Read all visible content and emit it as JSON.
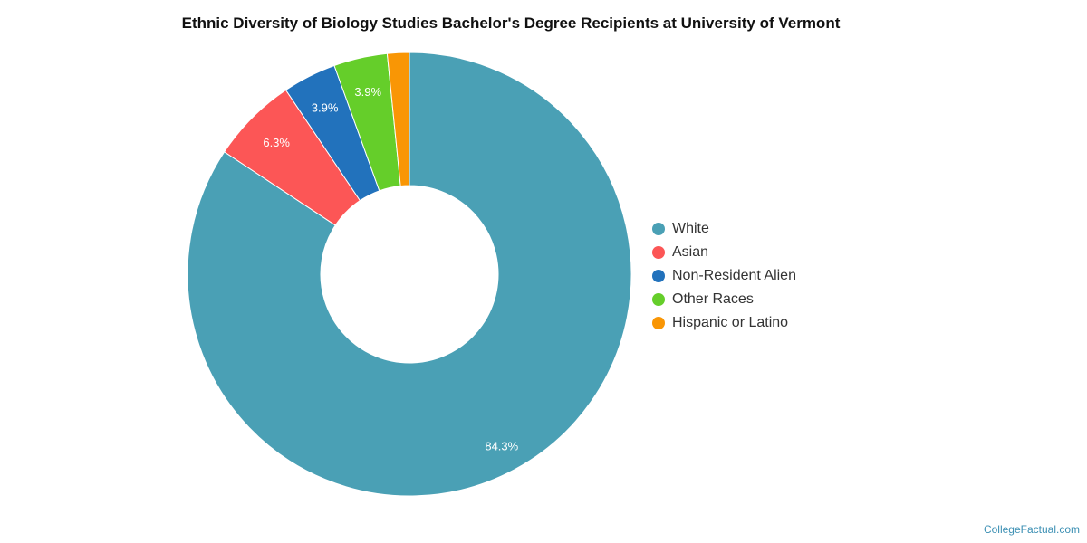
{
  "chart_data": {
    "type": "pie",
    "title": "Ethnic Diversity of Biology Studies Bachelor's Degree Recipients at University of Vermont",
    "categories": [
      "White",
      "Asian",
      "Non-Resident Alien",
      "Other Races",
      "Hispanic or Latino"
    ],
    "values": [
      84.3,
      6.3,
      3.9,
      3.9,
      1.6
    ],
    "labels": [
      "84.3%",
      "6.3%",
      "3.9%",
      "3.9%",
      ""
    ],
    "colors": [
      "#4aa0b5",
      "#fc5656",
      "#2272bc",
      "#65ce2a",
      "#f99605"
    ],
    "donut": true,
    "legend_position": "right"
  },
  "credit": "CollegeFactual.com"
}
